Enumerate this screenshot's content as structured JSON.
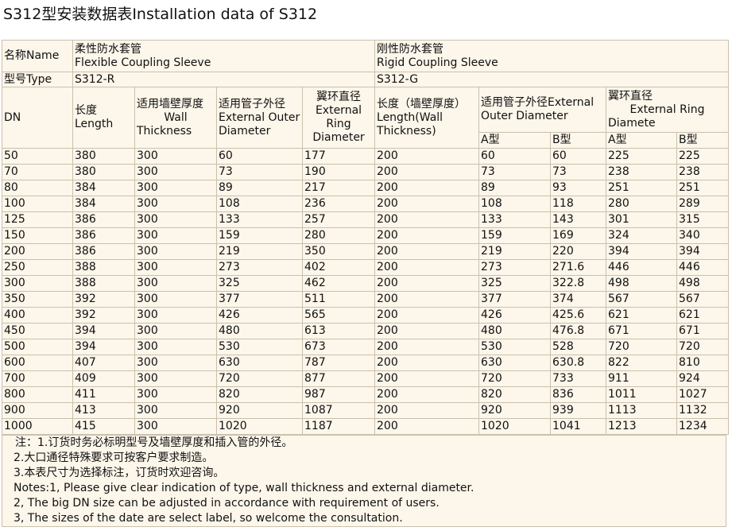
{
  "title": "S312型安装数据表Installation data of S312",
  "header": {
    "name_label": "名称Name",
    "flexible_cn": "柔性防水套管",
    "flexible_en": "Flexible Coupling Sleeve",
    "rigid_cn": "刚性防水套管",
    "rigid_en": "Rigid Coupling Sleeve",
    "type_label": "型号Type",
    "type_r": "S312-R",
    "type_g": "S312-G",
    "dn": "DN",
    "length_cn": "长度",
    "length_en": "Length",
    "wall_cn": "适用墙壁厚度",
    "wall_en1": "Wall",
    "wall_en2": "Thickness",
    "outer_cn": "适用管子外径",
    "outer_en": "External Outer Diameter",
    "ring_cn": "翼环直径",
    "ring_en": "External Ring Diameter",
    "rigid_len_cn": "长度（墙壁厚度）",
    "rigid_len_en": "Length(Wall Thickness)",
    "rigid_outer": "适用管子外径External Outer Diameter",
    "rigid_ring_cn": "翼环直径",
    "rigid_ring_en1": "External Ring",
    "rigid_ring_en2": "Diamete",
    "sub_a1": "A型",
    "sub_b1": "B型",
    "sub_a2": "A型",
    "sub_b2": "B型"
  },
  "rows": [
    [
      "50",
      "380",
      "300",
      "60",
      "177",
      "200",
      "60",
      "60",
      "225",
      "225"
    ],
    [
      "70",
      "380",
      "300",
      "73",
      "190",
      "200",
      "73",
      "73",
      "238",
      "238"
    ],
    [
      "80",
      "384",
      "300",
      "89",
      "217",
      "200",
      "89",
      "93",
      "251",
      "251"
    ],
    [
      "100",
      "384",
      "300",
      "108",
      "236",
      "200",
      "108",
      "118",
      "280",
      "289"
    ],
    [
      "125",
      "386",
      "300",
      "133",
      "257",
      "200",
      "133",
      "143",
      "301",
      "315"
    ],
    [
      "150",
      "386",
      "300",
      "159",
      "280",
      "200",
      "159",
      "169",
      "324",
      "340"
    ],
    [
      "200",
      "386",
      "300",
      "219",
      "350",
      "200",
      "219",
      "220",
      "394",
      "394"
    ],
    [
      "250",
      "388",
      "300",
      "273",
      "402",
      "200",
      "273",
      "271.6",
      "446",
      "446"
    ],
    [
      "300",
      "388",
      "300",
      "325",
      "462",
      "200",
      "325",
      "322.8",
      "498",
      "498"
    ],
    [
      "350",
      "392",
      "300",
      "377",
      "511",
      "200",
      "377",
      "374",
      "567",
      "567"
    ],
    [
      "400",
      "392",
      "300",
      "426",
      "565",
      "200",
      "426",
      "425.6",
      "621",
      "621"
    ],
    [
      "450",
      "394",
      "300",
      "480",
      "613",
      "200",
      "480",
      "476.8",
      "671",
      "671"
    ],
    [
      "500",
      "394",
      "300",
      "530",
      "673",
      "200",
      "530",
      "528",
      "720",
      "720"
    ],
    [
      "600",
      "407",
      "300",
      "630",
      "787",
      "200",
      "630",
      "630.8",
      "822",
      "810"
    ],
    [
      "700",
      "409",
      "300",
      "720",
      "877",
      "200",
      "720",
      "733",
      "911",
      "924"
    ],
    [
      "800",
      "411",
      "300",
      "820",
      "987",
      "200",
      "820",
      "836",
      "1011",
      "1027"
    ],
    [
      "900",
      "413",
      "300",
      "920",
      "1087",
      "200",
      "920",
      "939",
      "1113",
      "1132"
    ],
    [
      "1000",
      "415",
      "300",
      "1020",
      "1187",
      "200",
      "1020",
      "1041",
      "1213",
      "1234"
    ]
  ],
  "notes": [
    "注：1.订货时务必标明型号及墙壁厚度和插入管的外径。",
    "2.大口通径特殊要求可按客户要求制造。",
    "3.本表尺寸为选择标注，订货时欢迎咨询。",
    "Notes:1, Please give clear indication of type, wall thickness and external diameter.",
    "2, The big DN size can be adjusted in accordance with requirement of users.",
    "3, The sizes of the date are select label, so welcome the consultation."
  ]
}
